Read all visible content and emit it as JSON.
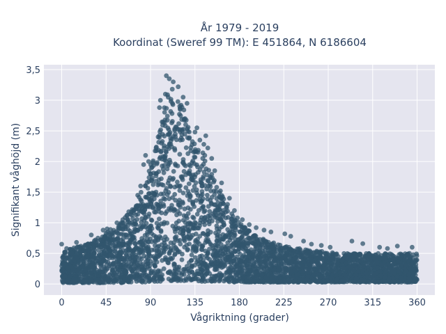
{
  "chart_data": {
    "type": "scatter",
    "title_line1": "År 1979 - 2019",
    "title_line2": "Koordinat (Sweref 99 TM): E 451864, N 6186604",
    "xlabel": "Vågriktning (grader)",
    "ylabel": "Signifikant våghöjd (m)",
    "xlim": [
      -18,
      378
    ],
    "ylim": [
      -0.18,
      3.58
    ],
    "xticks": [
      0,
      45,
      90,
      135,
      180,
      225,
      270,
      315,
      360
    ],
    "xtick_labels": [
      "0",
      "45",
      "90",
      "135",
      "180",
      "225",
      "270",
      "315",
      "360"
    ],
    "yticks": [
      0,
      0.5,
      1,
      1.5,
      2,
      2.5,
      3,
      3.5
    ],
    "ytick_labels": [
      "0",
      "0,5",
      "1",
      "1,5",
      "2",
      "2,5",
      "3",
      "3,5"
    ],
    "grid": true,
    "marker_color": "#32566e",
    "background_color": "#e5e5ef",
    "envelope": {
      "x": [
        0,
        15,
        30,
        45,
        60,
        75,
        85,
        95,
        100,
        105,
        110,
        115,
        120,
        125,
        130,
        140,
        150,
        160,
        170,
        180,
        195,
        210,
        225,
        240,
        255,
        270,
        285,
        300,
        315,
        330,
        345,
        360
      ],
      "upper": [
        0.55,
        0.6,
        0.7,
        0.85,
        1.0,
        1.3,
        1.7,
        2.2,
        2.6,
        3.0,
        3.2,
        3.15,
        3.0,
        2.8,
        2.5,
        2.25,
        1.9,
        1.55,
        1.25,
        1.0,
        0.8,
        0.7,
        0.62,
        0.58,
        0.55,
        0.52,
        0.5,
        0.5,
        0.5,
        0.5,
        0.5,
        0.5
      ],
      "lower": [
        0.02,
        0.02,
        0.02,
        0.02,
        0.02,
        0.03,
        0.03,
        0.04,
        0.04,
        0.05,
        0.05,
        0.05,
        0.05,
        0.05,
        0.04,
        0.04,
        0.04,
        0.03,
        0.03,
        0.03,
        0.03,
        0.03,
        0.03,
        0.03,
        0.03,
        0.03,
        0.03,
        0.03,
        0.03,
        0.03,
        0.03,
        0.03
      ]
    },
    "points": [
      {
        "x": 106,
        "y": 3.4
      },
      {
        "x": 109,
        "y": 3.35
      },
      {
        "x": 113,
        "y": 3.3
      },
      {
        "x": 118,
        "y": 3.22
      },
      {
        "x": 112,
        "y": 3.18
      },
      {
        "x": 105,
        "y": 3.1
      },
      {
        "x": 123,
        "y": 3.05
      },
      {
        "x": 100,
        "y": 3.0
      },
      {
        "x": 127,
        "y": 2.95
      },
      {
        "x": 99,
        "y": 2.88
      },
      {
        "x": 120,
        "y": 2.85
      },
      {
        "x": 125,
        "y": 2.7
      },
      {
        "x": 137,
        "y": 2.55
      },
      {
        "x": 135,
        "y": 2.48
      },
      {
        "x": 146,
        "y": 2.42
      },
      {
        "x": 140,
        "y": 2.35
      },
      {
        "x": 144,
        "y": 2.28
      },
      {
        "x": 148,
        "y": 2.22
      },
      {
        "x": 138,
        "y": 2.15
      },
      {
        "x": 145,
        "y": 2.1
      },
      {
        "x": 152,
        "y": 2.05
      },
      {
        "x": 85,
        "y": 2.1
      },
      {
        "x": 83,
        "y": 1.95
      },
      {
        "x": 88,
        "y": 2.0
      },
      {
        "x": 155,
        "y": 1.85
      },
      {
        "x": 162,
        "y": 1.65
      },
      {
        "x": 157,
        "y": 1.58
      },
      {
        "x": 170,
        "y": 1.4
      },
      {
        "x": 168,
        "y": 1.3
      },
      {
        "x": 175,
        "y": 1.2
      },
      {
        "x": 178,
        "y": 1.08
      },
      {
        "x": 183,
        "y": 1.05
      },
      {
        "x": 190,
        "y": 0.97
      },
      {
        "x": 197,
        "y": 0.92
      },
      {
        "x": 205,
        "y": 0.88
      },
      {
        "x": 212,
        "y": 0.85
      },
      {
        "x": 226,
        "y": 0.82
      },
      {
        "x": 232,
        "y": 0.78
      },
      {
        "x": 245,
        "y": 0.7
      },
      {
        "x": 253,
        "y": 0.65
      },
      {
        "x": 263,
        "y": 0.63
      },
      {
        "x": 272,
        "y": 0.6
      },
      {
        "x": 294,
        "y": 0.7
      },
      {
        "x": 305,
        "y": 0.66
      },
      {
        "x": 322,
        "y": 0.6
      },
      {
        "x": 330,
        "y": 0.58
      },
      {
        "x": 340,
        "y": 0.62
      },
      {
        "x": 355,
        "y": 0.6
      },
      {
        "x": 30,
        "y": 0.8
      },
      {
        "x": 42,
        "y": 0.88
      },
      {
        "x": 46,
        "y": 0.9
      },
      {
        "x": 56,
        "y": 1.0
      },
      {
        "x": 62,
        "y": 1.05
      },
      {
        "x": 68,
        "y": 1.18
      },
      {
        "x": 73,
        "y": 1.2
      },
      {
        "x": 66,
        "y": 1.12
      },
      {
        "x": 77,
        "y": 1.45
      },
      {
        "x": 80,
        "y": 1.6
      },
      {
        "x": 15,
        "y": 0.68
      },
      {
        "x": 0,
        "y": 0.65
      },
      {
        "x": 5,
        "y": 0.58
      },
      {
        "x": 24,
        "y": 0.62
      }
    ]
  }
}
